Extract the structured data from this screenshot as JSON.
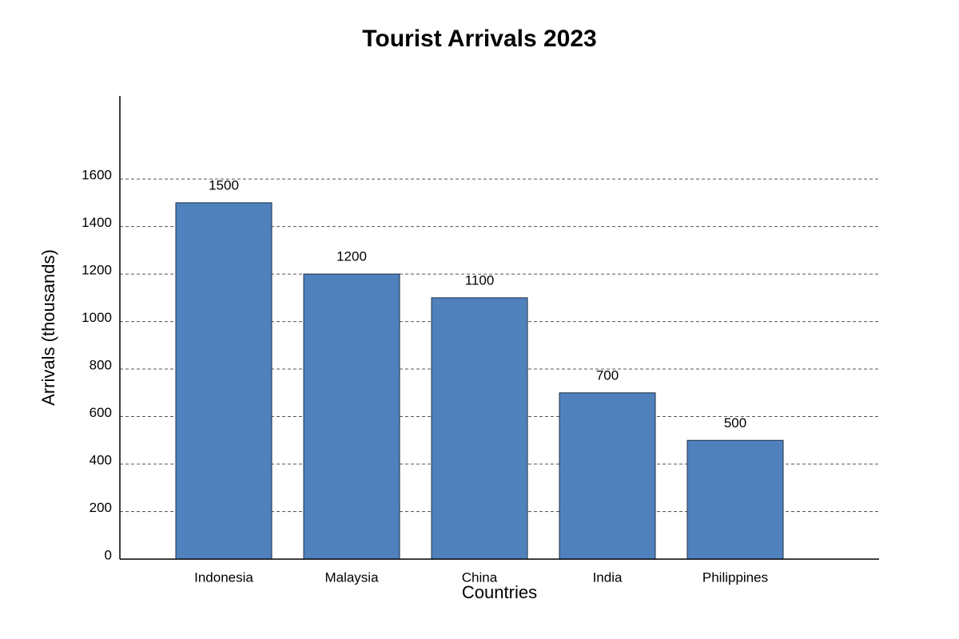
{
  "chart_data": {
    "type": "bar",
    "title": "Tourist Arrivals 2023",
    "x_label": "Countries",
    "y_label": "Arrivals (thousands)",
    "categories": [
      "Indonesia",
      "Malaysia",
      "China",
      "India",
      "Philippines"
    ],
    "values": [
      1500,
      1200,
      1100,
      700,
      500
    ],
    "color": "#4f81bd",
    "ylim": [
      0,
      1950
    ],
    "yticks": [
      0,
      200,
      400,
      600,
      800,
      1000,
      1200,
      1400,
      1600
    ],
    "grid": true
  }
}
